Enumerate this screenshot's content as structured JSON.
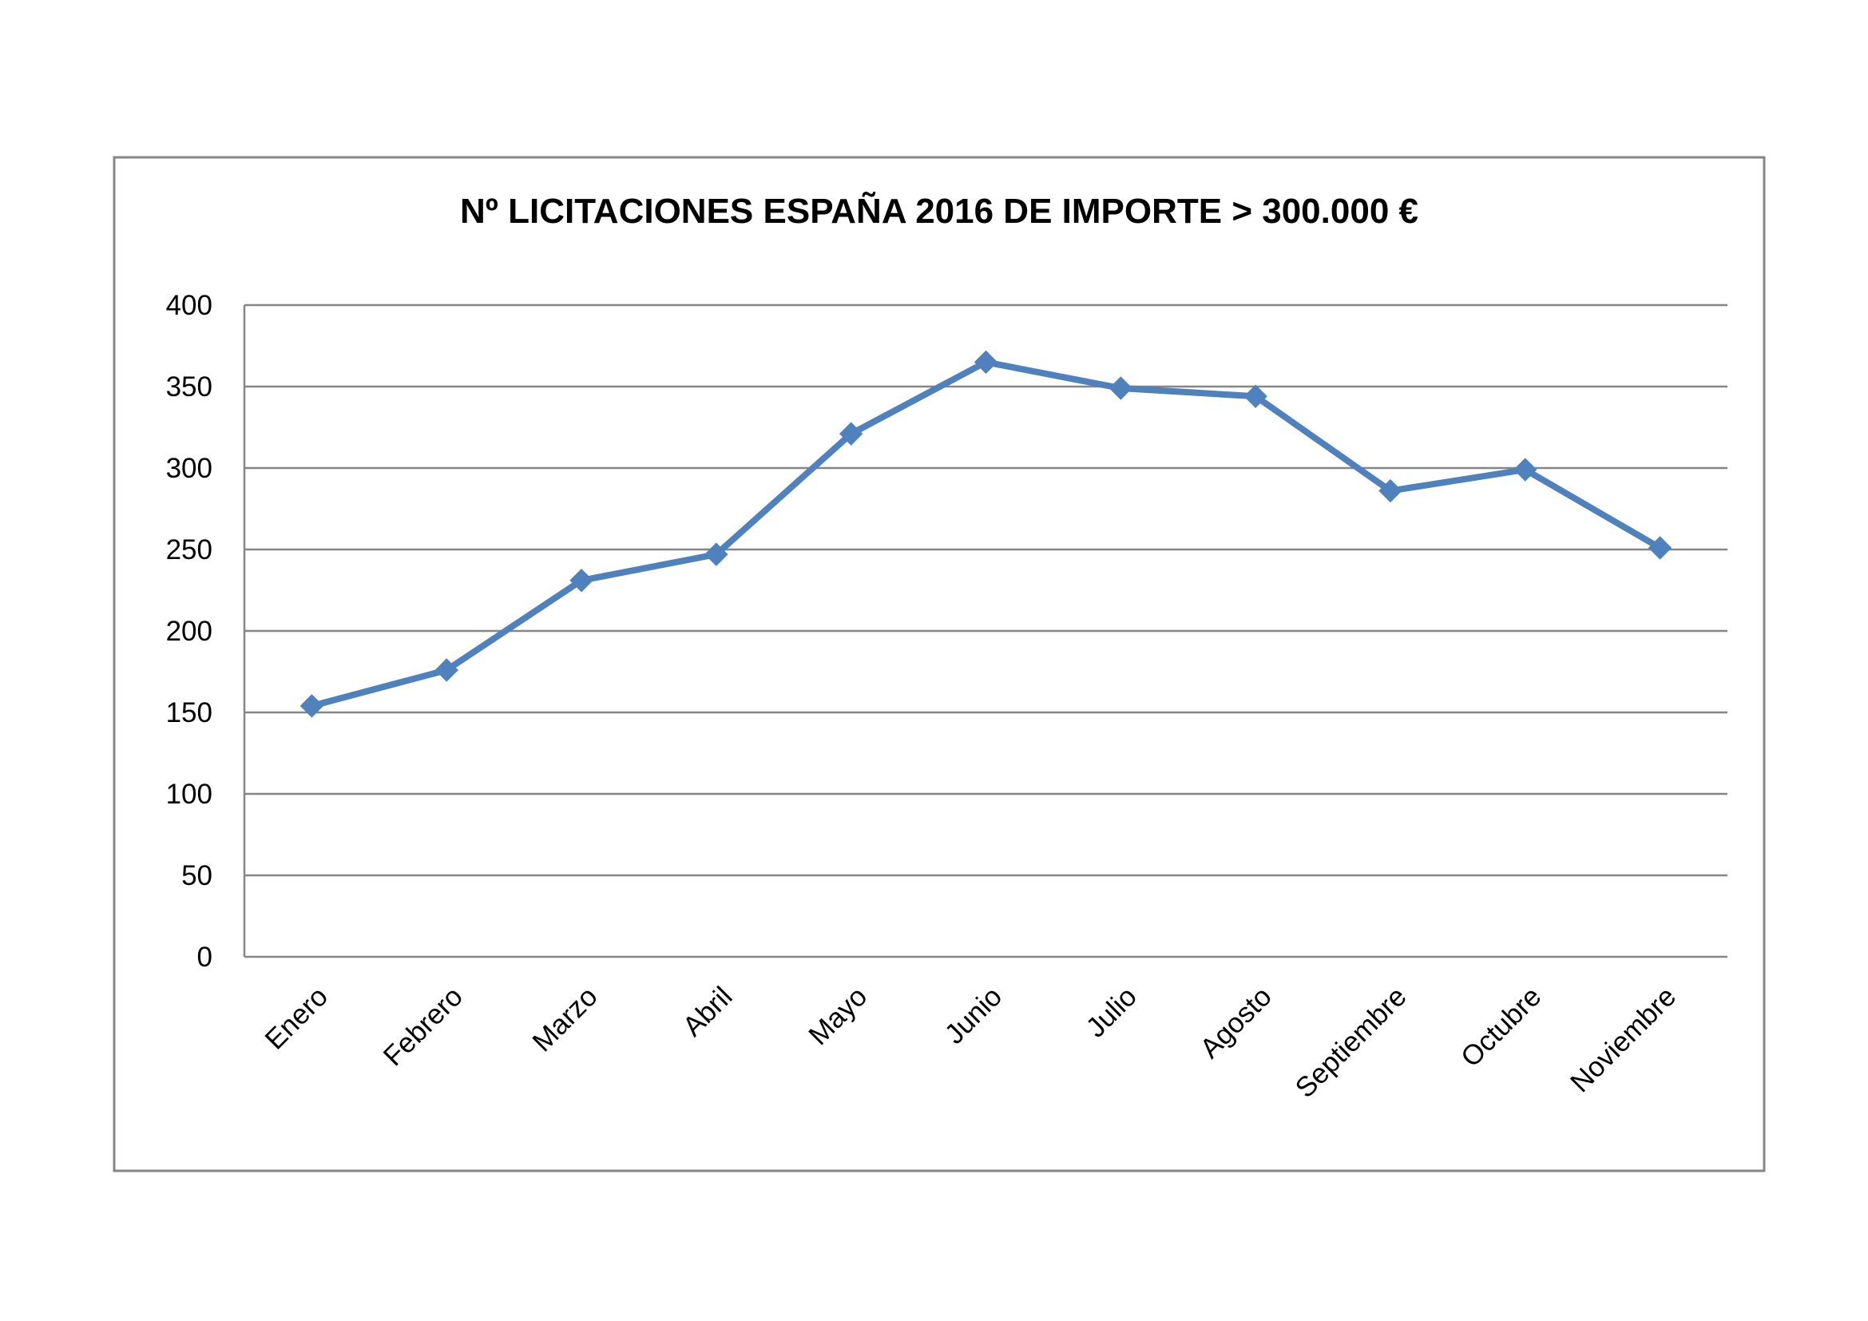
{
  "chart_data": {
    "type": "line",
    "title": "Nº LICITACIONES ESPAÑA 2016 DE IMPORTE > 300.000 €",
    "xlabel": "",
    "ylabel": "",
    "categories": [
      "Enero",
      "Febrero",
      "Marzo",
      "Abril",
      "Mayo",
      "Junio",
      "Julio",
      "Agosto",
      "Septiembre",
      "Octubre",
      "Noviembre"
    ],
    "series": [
      {
        "values": [
          154,
          176,
          231,
          247,
          321,
          365,
          349,
          344,
          286,
          299,
          251
        ]
      }
    ],
    "ylim": [
      0,
      400
    ],
    "yticks": [
      "0",
      "50",
      "100",
      "150",
      "200",
      "250",
      "300",
      "350",
      "400"
    ],
    "grid": true,
    "legend": "none",
    "series_color": "#4F81BD",
    "gridline_color": "#868686",
    "frame_color": "#868686"
  }
}
